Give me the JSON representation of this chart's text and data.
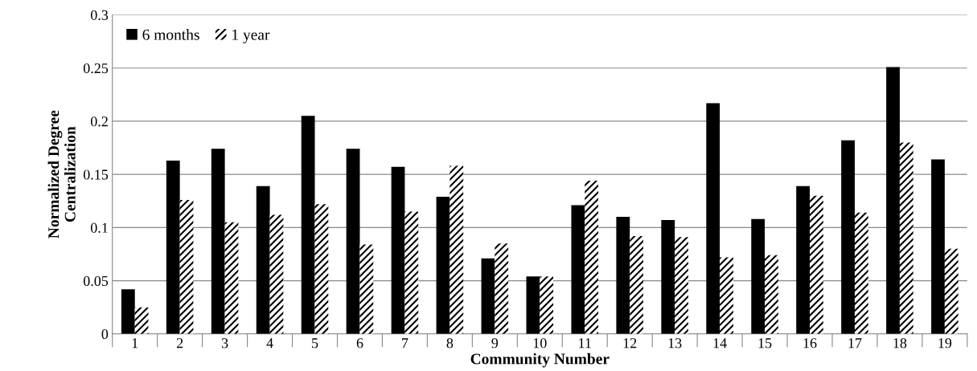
{
  "chart_data": {
    "type": "bar",
    "xlabel": "Community Number",
    "ylabel": "Normalized Degree\nCentralization",
    "categories": [
      "1",
      "2",
      "3",
      "4",
      "5",
      "6",
      "7",
      "8",
      "9",
      "10",
      "11",
      "12",
      "13",
      "14",
      "15",
      "16",
      "17",
      "18",
      "19"
    ],
    "series": [
      {
        "name": "6 months",
        "color": "#000000",
        "values": [
          0.042,
          0.163,
          0.174,
          0.139,
          0.205,
          0.174,
          0.157,
          0.129,
          0.071,
          0.054,
          0.121,
          0.11,
          0.107,
          0.217,
          0.108,
          0.139,
          0.182,
          0.251,
          0.164
        ]
      },
      {
        "name": "1 year",
        "color": "#000000",
        "values": [
          0.025,
          0.126,
          0.105,
          0.112,
          0.122,
          0.084,
          0.115,
          0.158,
          0.085,
          0.054,
          0.144,
          0.092,
          0.091,
          0.072,
          0.074,
          0.13,
          0.114,
          0.18,
          0.08
        ]
      }
    ],
    "ylim": [
      0,
      0.3
    ],
    "yticks": [
      0,
      {
        "value": 0.05,
        "label": "0.05"
      },
      {
        "value": 0.1,
        "label": "0.1"
      },
      {
        "value": 0.15,
        "label": "0.15"
      },
      {
        "value": 0.2,
        "label": "0.2"
      },
      {
        "value": 0.25,
        "label": "0.25"
      },
      {
        "value": 0.3,
        "label": "0.3"
      }
    ],
    "grid": "y",
    "legend": "top left"
  }
}
